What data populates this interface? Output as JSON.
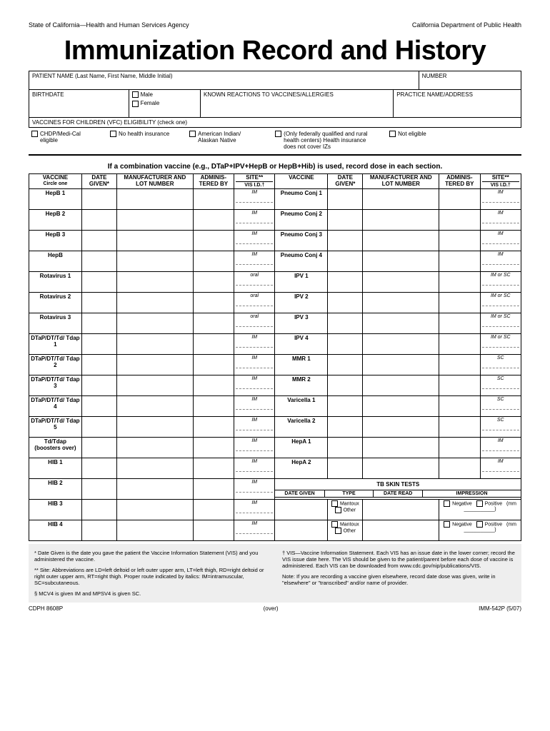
{
  "header": {
    "left": "State of California—Health and Human Services Agency",
    "right": "California Department of Public Health"
  },
  "title": "Immunization Record and History",
  "patient": {
    "name_label": "PATIENT NAME (Last Name, First Name, Middle Initial)",
    "number_label": "NUMBER",
    "birthdate_label": "BIRTHDATE",
    "male_label": "Male",
    "female_label": "Female",
    "reactions_label": "KNOWN REACTIONS TO VACCINES/ALLERGIES",
    "practice_label": "PRACTICE NAME/ADDRESS"
  },
  "vfc": {
    "label": "VACCINES FOR CHILDREN (VFC) ELIGIBILITY (check one)",
    "options": [
      "CHDP/Medi-Cal eligible",
      "No health insurance",
      "American Indian/ Alaskan Native",
      "(Only federally qualified and rural health centers) Health insurance does not cover IZs",
      "Not eligible"
    ]
  },
  "instruction": "If a combination vaccine (e.g., DTaP+IPV+HepB or HepB+Hib) is used, record dose in each section.",
  "columns": {
    "vaccine": "VACCINE",
    "circle": "Circle one",
    "date": "DATE GIVEN*",
    "mfr": "MANUFACTURER AND LOT NUMBER",
    "admin": "ADMINIS- TERED BY",
    "site": "SITE**",
    "vis": "VIS I.D.†"
  },
  "left_vaccines": [
    {
      "name": "HepB 1",
      "site": "IM"
    },
    {
      "name": "HepB 2",
      "site": "IM"
    },
    {
      "name": "HepB 3",
      "site": "IM"
    },
    {
      "name": "HepB",
      "site": "IM"
    },
    {
      "name": "Rotavirus 1",
      "site": "oral"
    },
    {
      "name": "Rotavirus 2",
      "site": "oral"
    },
    {
      "name": "Rotavirus 3",
      "site": "oral"
    },
    {
      "name": "DTaP/DT/Td/ Tdap 1",
      "site": "IM"
    },
    {
      "name": "DTaP/DT/Td/ Tdap 2",
      "site": "IM"
    },
    {
      "name": "DTaP/DT/Td/ Tdap 3",
      "site": "IM"
    },
    {
      "name": "DTaP/DT/Td/ Tdap 4",
      "site": "IM"
    },
    {
      "name": "DTaP/DT/Td/ Tdap 5",
      "site": "IM"
    },
    {
      "name": "Td/Tdap (boosters over)",
      "site": "IM"
    },
    {
      "name": "HIB 1",
      "site": "IM"
    },
    {
      "name": "HIB 2",
      "site": "IM"
    },
    {
      "name": "HIB 3",
      "site": "IM"
    },
    {
      "name": "HIB 4",
      "site": "IM"
    }
  ],
  "right_vaccines": [
    {
      "name": "Pneumo Conj 1",
      "site": "IM"
    },
    {
      "name": "Pneumo Conj 2",
      "site": "IM"
    },
    {
      "name": "Pneumo Conj 3",
      "site": "IM"
    },
    {
      "name": "Pneumo Conj 4",
      "site": "IM"
    },
    {
      "name": "IPV 1",
      "site": "IM or SC"
    },
    {
      "name": "IPV 2",
      "site": "IM or SC"
    },
    {
      "name": "IPV 3",
      "site": "IM or SC"
    },
    {
      "name": "IPV 4",
      "site": "IM or SC"
    },
    {
      "name": "MMR 1",
      "site": "SC"
    },
    {
      "name": "MMR 2",
      "site": "SC"
    },
    {
      "name": "Varicella 1",
      "site": "SC"
    },
    {
      "name": "Varicella 2",
      "site": "SC"
    },
    {
      "name": "HepA 1",
      "site": "IM"
    },
    {
      "name": "HepA 2",
      "site": "IM"
    }
  ],
  "tb": {
    "header": "TB SKIN TESTS",
    "date_given": "DATE GIVEN",
    "type": "TYPE",
    "date_read": "DATE READ",
    "impression": "IMPRESSION",
    "mantoux": "Mantoux",
    "other": "Other",
    "negative": "Negative",
    "positive": "Positive",
    "mm": "(mm ___________)"
  },
  "footnotes": {
    "date_given": "* Date Given is the date you gave the patient the Vaccine Information Statement (VIS) and you administered the vaccine.",
    "site": "** Site: Abbreviations are LD=left deltoid or left outer upper arm, LT=left thigh, RD=right deltoid or right outer upper arm, RT=right thigh. Proper route indicated by italics: IM=intramuscular, SC=subcutaneous.",
    "mcv4": "§ MCV4 is given IM and MPSV4 is given SC.",
    "vis": "† VIS—Vaccine Information Statement. Each VIS has an issue date in the lower corner; record the VIS issue date here. The VIS should be given to the patient/parent before each dose of vaccine is administered. Each VIS can be downloaded from www.cdc.gov/nip/publications/VIS.",
    "note": "Note: If you are recording a vaccine given elsewhere, record date dose was given, write in \"elsewhere\" or \"transcribed\" and/or name of provider."
  },
  "footer": {
    "left": "CDPH 8608P",
    "center": "(over)",
    "right": "IMM-542P (5/07)"
  }
}
